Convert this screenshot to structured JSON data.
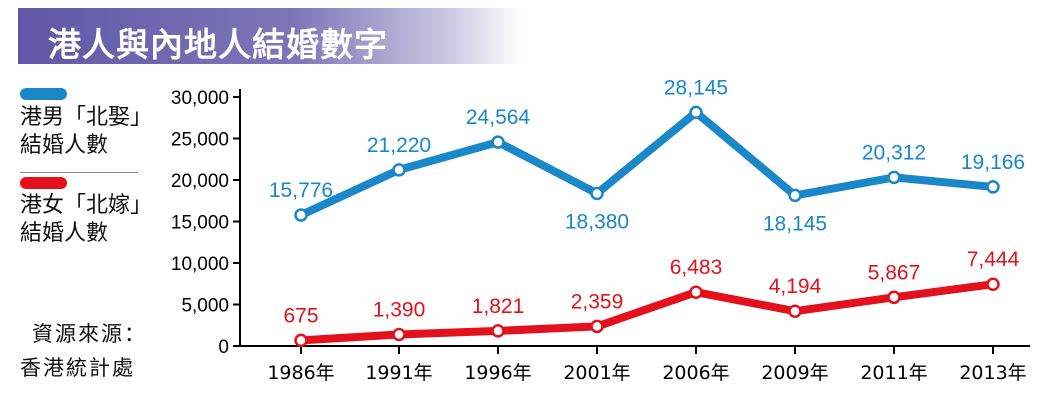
{
  "title": "港人與內地人結婚數字",
  "legend": [
    {
      "line1": "港男「北娶」",
      "line2": "結婚人數",
      "color": "#1a87c9"
    },
    {
      "line1": "港女「北嫁」",
      "line2": "結婚人數",
      "color": "#e3111b"
    }
  ],
  "source": {
    "label": "資源來源：",
    "value": "香港統計處"
  },
  "chart_data": {
    "type": "line",
    "categories": [
      "1986年",
      "1991年",
      "1996年",
      "2001年",
      "2006年",
      "2009年",
      "2011年",
      "2013年"
    ],
    "series": [
      {
        "name": "港男「北娶」結婚人數",
        "color": "#1a87c9",
        "values": [
          15776,
          21220,
          24564,
          18380,
          28145,
          18145,
          20312,
          19166
        ],
        "labels": [
          "15,776",
          "21,220",
          "24,564",
          "18,380",
          "28,145",
          "18,145",
          "20,312",
          "19,166"
        ]
      },
      {
        "name": "港女「北嫁」結婚人數",
        "color": "#e3111b",
        "values": [
          675,
          1390,
          1821,
          2359,
          6483,
          4194,
          5867,
          7444
        ],
        "labels": [
          "675",
          "1,390",
          "1,821",
          "2,359",
          "6,483",
          "4,194",
          "5,867",
          "7,444"
        ]
      }
    ],
    "yticks": [
      "0",
      "5,000",
      "10,000",
      "15,000",
      "20,000",
      "25,000",
      "30,000"
    ],
    "ylim": [
      0,
      30000
    ],
    "grid": false,
    "legend": "left"
  }
}
